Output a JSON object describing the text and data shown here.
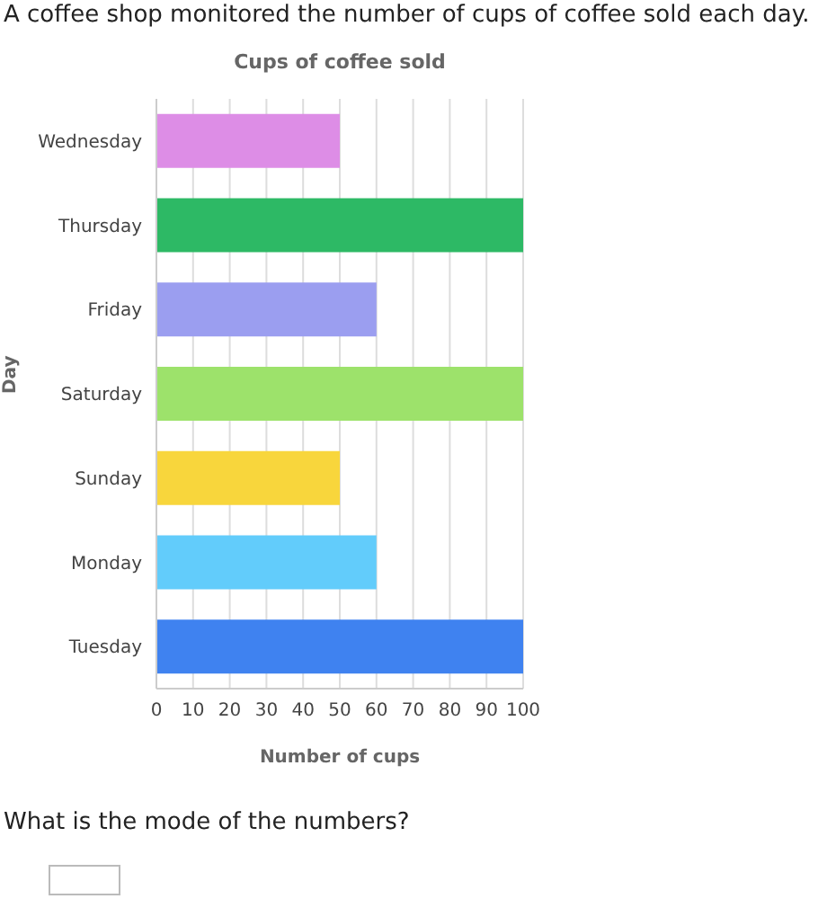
{
  "chart_data": {
    "type": "bar",
    "orientation": "horizontal",
    "title": "Cups of coffee sold",
    "xlabel": "Number of cups",
    "ylabel": "Day",
    "categories": [
      "Wednesday",
      "Thursday",
      "Friday",
      "Saturday",
      "Sunday",
      "Monday",
      "Tuesday"
    ],
    "values": [
      50,
      100,
      60,
      100,
      50,
      60,
      100
    ],
    "colors": [
      "#dd8de6",
      "#2db965",
      "#9b9ef0",
      "#9de26b",
      "#f8d63c",
      "#62ccfb",
      "#3f82f0"
    ],
    "xlim": [
      0,
      100
    ],
    "xticks": [
      0,
      10,
      20,
      30,
      40,
      50,
      60,
      70,
      80,
      90,
      100
    ],
    "grid": "x",
    "annotations": [
      "A coffee shop monitored the number of cups of coffee sold each day.",
      "What is the mode of the numbers?"
    ]
  }
}
